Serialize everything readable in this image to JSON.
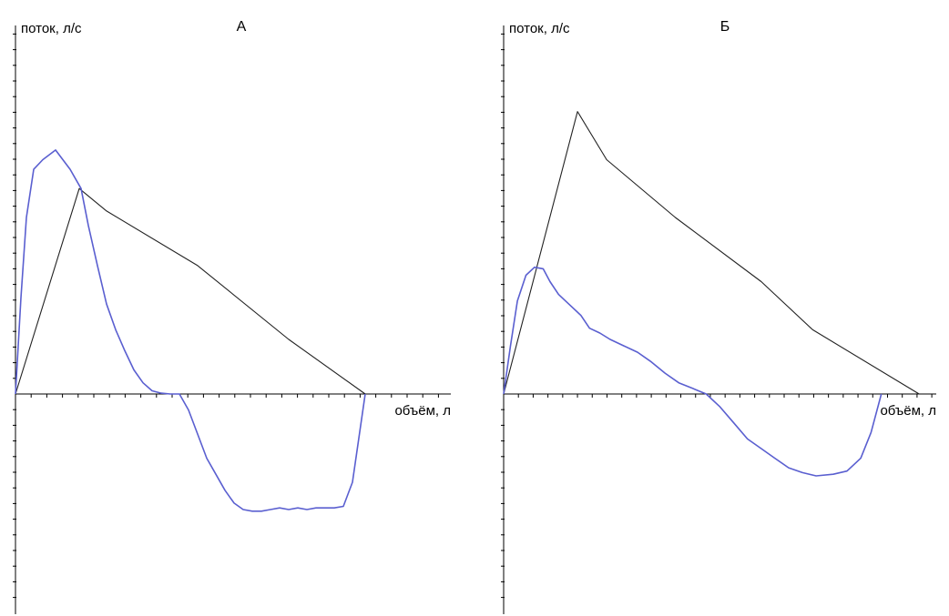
{
  "chart_data": [
    {
      "type": "line",
      "title": "А",
      "ylabel": "поток, л/с",
      "xlabel": "объём, л",
      "xlim": [
        0,
        24
      ],
      "ylim": [
        -12,
        20
      ],
      "x_ticks": 24,
      "y_ticks": 32,
      "colors": {
        "axis": "#000000",
        "black_line": "#222222",
        "blue_line": "#5a5fd0"
      },
      "series": [
        {
          "color": "#222222",
          "x": [
            0,
            3.5,
            5,
            10,
            15,
            19.2
          ],
          "y": [
            0,
            12.8,
            11.4,
            8,
            3.4,
            0
          ]
        },
        {
          "color": "#5a5fd0",
          "x": [
            0,
            0.3,
            0.6,
            1,
            1.5,
            2.2,
            3,
            3.6,
            4,
            4.5,
            5,
            5.5,
            6,
            6.5,
            7,
            7.5,
            8,
            8.5,
            9,
            9.5,
            10,
            10.5,
            11,
            11.5,
            12,
            12.5,
            13,
            13.5,
            14,
            14.5,
            15,
            15.5,
            16,
            16.5,
            17,
            17.5,
            18,
            18.5,
            19.2
          ],
          "y": [
            0,
            6,
            11,
            14,
            14.6,
            15.2,
            14,
            12.8,
            10.5,
            8,
            5.6,
            4,
            2.7,
            1.5,
            0.7,
            0.2,
            0.05,
            0,
            0,
            -1,
            -2.5,
            -4,
            -5,
            -6,
            -6.8,
            -7.2,
            -7.3,
            -7.3,
            -7.2,
            -7.1,
            -7.2,
            -7.1,
            -7.2,
            -7.1,
            -7.1,
            -7.1,
            -7.0,
            -5.5,
            0
          ]
        }
      ]
    },
    {
      "type": "line",
      "title": "Б",
      "ylabel": "поток, л/с",
      "xlabel": "объём, л",
      "xlim": [
        0,
        24
      ],
      "ylim": [
        -12,
        20
      ],
      "x_ticks": 24,
      "y_ticks": 32,
      "colors": {
        "axis": "#000000",
        "black_line": "#222222",
        "blue_line": "#5a5fd0"
      },
      "series": [
        {
          "color": "#222222",
          "x": [
            0,
            4.3,
            6,
            10,
            15,
            18,
            24.2
          ],
          "y": [
            0,
            17.6,
            14.6,
            11,
            7,
            4,
            0
          ]
        },
        {
          "color": "#5a5fd0",
          "x": [
            0,
            0.4,
            0.8,
            1.3,
            1.8,
            2.3,
            2.7,
            3.2,
            3.8,
            4.5,
            5,
            5.6,
            6.2,
            7,
            7.8,
            8.6,
            9.4,
            10.2,
            11,
            11.8,
            12.6,
            13.4,
            14.2,
            15,
            15.8,
            16.6,
            17.4,
            18.2,
            19.2,
            20,
            20.8,
            21.4,
            22
          ],
          "y": [
            0,
            3,
            5.8,
            7.4,
            7.9,
            7.8,
            7.0,
            6.2,
            5.6,
            4.9,
            4.1,
            3.8,
            3.4,
            3.0,
            2.6,
            2.0,
            1.3,
            0.7,
            0.35,
            0,
            -0.8,
            -1.8,
            -2.8,
            -3.4,
            -4.0,
            -4.6,
            -4.9,
            -5.1,
            -5.0,
            -4.8,
            -4.0,
            -2.4,
            0
          ]
        }
      ]
    }
  ]
}
